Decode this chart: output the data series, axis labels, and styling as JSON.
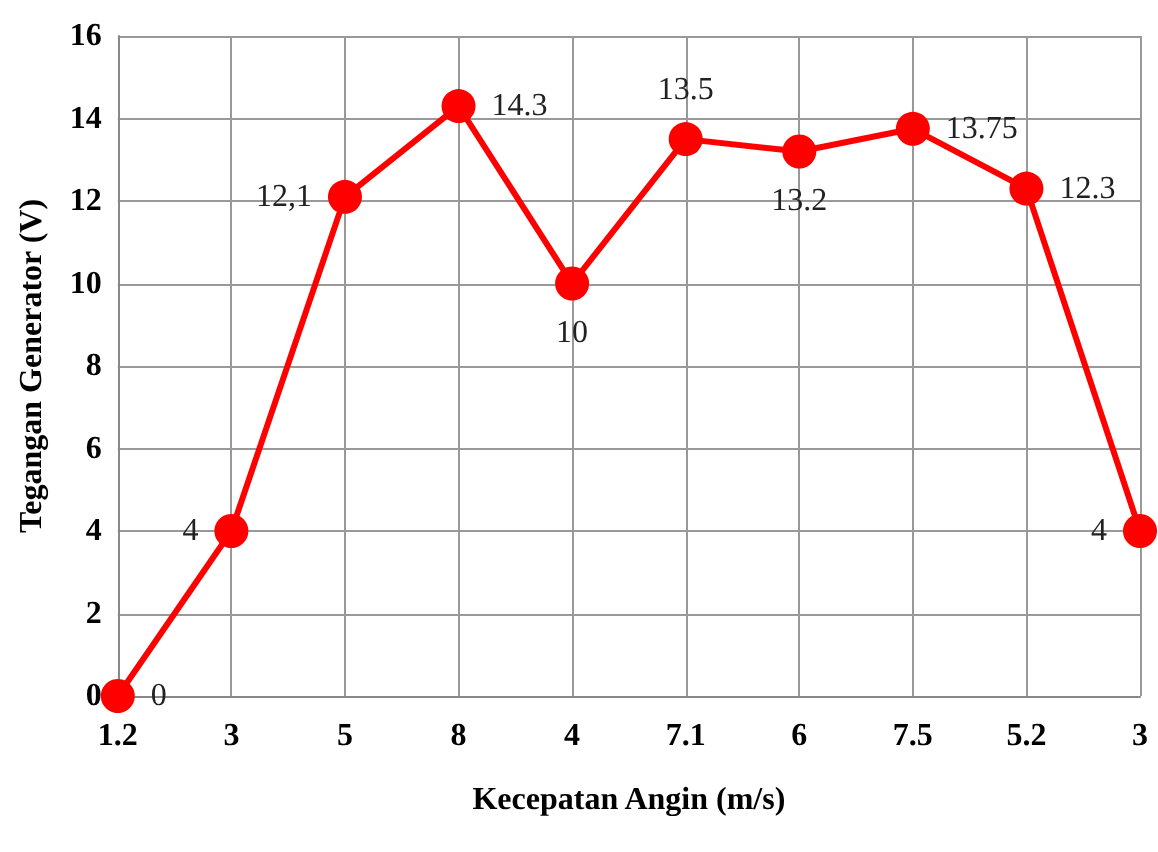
{
  "chart_data": {
    "type": "line",
    "xlabel": "Kecepatan Angin (m/s)",
    "ylabel": "Tegangan Generator (V)",
    "categories": [
      "1.2",
      "3",
      "5",
      "8",
      "4",
      "7.1",
      "6",
      "7.5",
      "5.2",
      "3"
    ],
    "series": [
      {
        "color": "#ff0000",
        "values": [
          0,
          4,
          12.1,
          14.3,
          10,
          13.5,
          13.2,
          13.75,
          12.3,
          4
        ],
        "value_labels": [
          "0",
          "4",
          "12,1",
          "14.3",
          "10",
          "13.5",
          "13.2",
          "13.75",
          "12.3",
          "4"
        ]
      }
    ],
    "ylim": [
      0,
      16
    ],
    "yticks": [
      0,
      2,
      4,
      6,
      8,
      10,
      12,
      14,
      16
    ],
    "grid": true,
    "marker": "circle",
    "line_style": "solid"
  }
}
